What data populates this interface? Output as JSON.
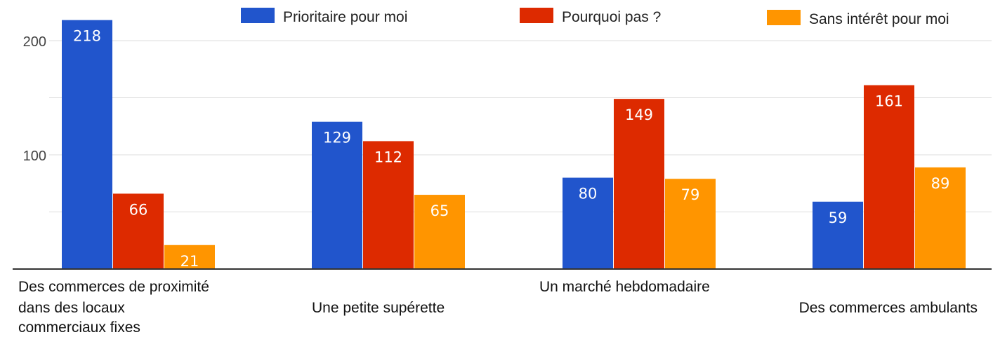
{
  "chart_data": {
    "type": "bar",
    "title": "",
    "xlabel": "",
    "ylabel": "",
    "ylim": [
      0,
      220
    ],
    "yticks": [
      100,
      200
    ],
    "grid": true,
    "legend_position": "top",
    "categories": [
      {
        "lines": [
          "Des commerces de proximité",
          "dans des locaux",
          "commerciaux fixes"
        ]
      },
      {
        "lines": [
          "Une petite supérette"
        ]
      },
      {
        "lines": [
          "Un marché hebdomadaire"
        ]
      },
      {
        "lines": [
          "Des commerces ambulants"
        ]
      }
    ],
    "series": [
      {
        "name": "Prioritaire pour moi",
        "color": "#2155cc",
        "values": [
          218,
          129,
          80,
          59
        ]
      },
      {
        "name": "Pourquoi pas ?",
        "color": "#dd2a00",
        "values": [
          66,
          112,
          149,
          161
        ]
      },
      {
        "name": "Sans intérêt pour moi",
        "color": "#ff9500",
        "values": [
          21,
          65,
          79,
          89
        ]
      }
    ]
  }
}
